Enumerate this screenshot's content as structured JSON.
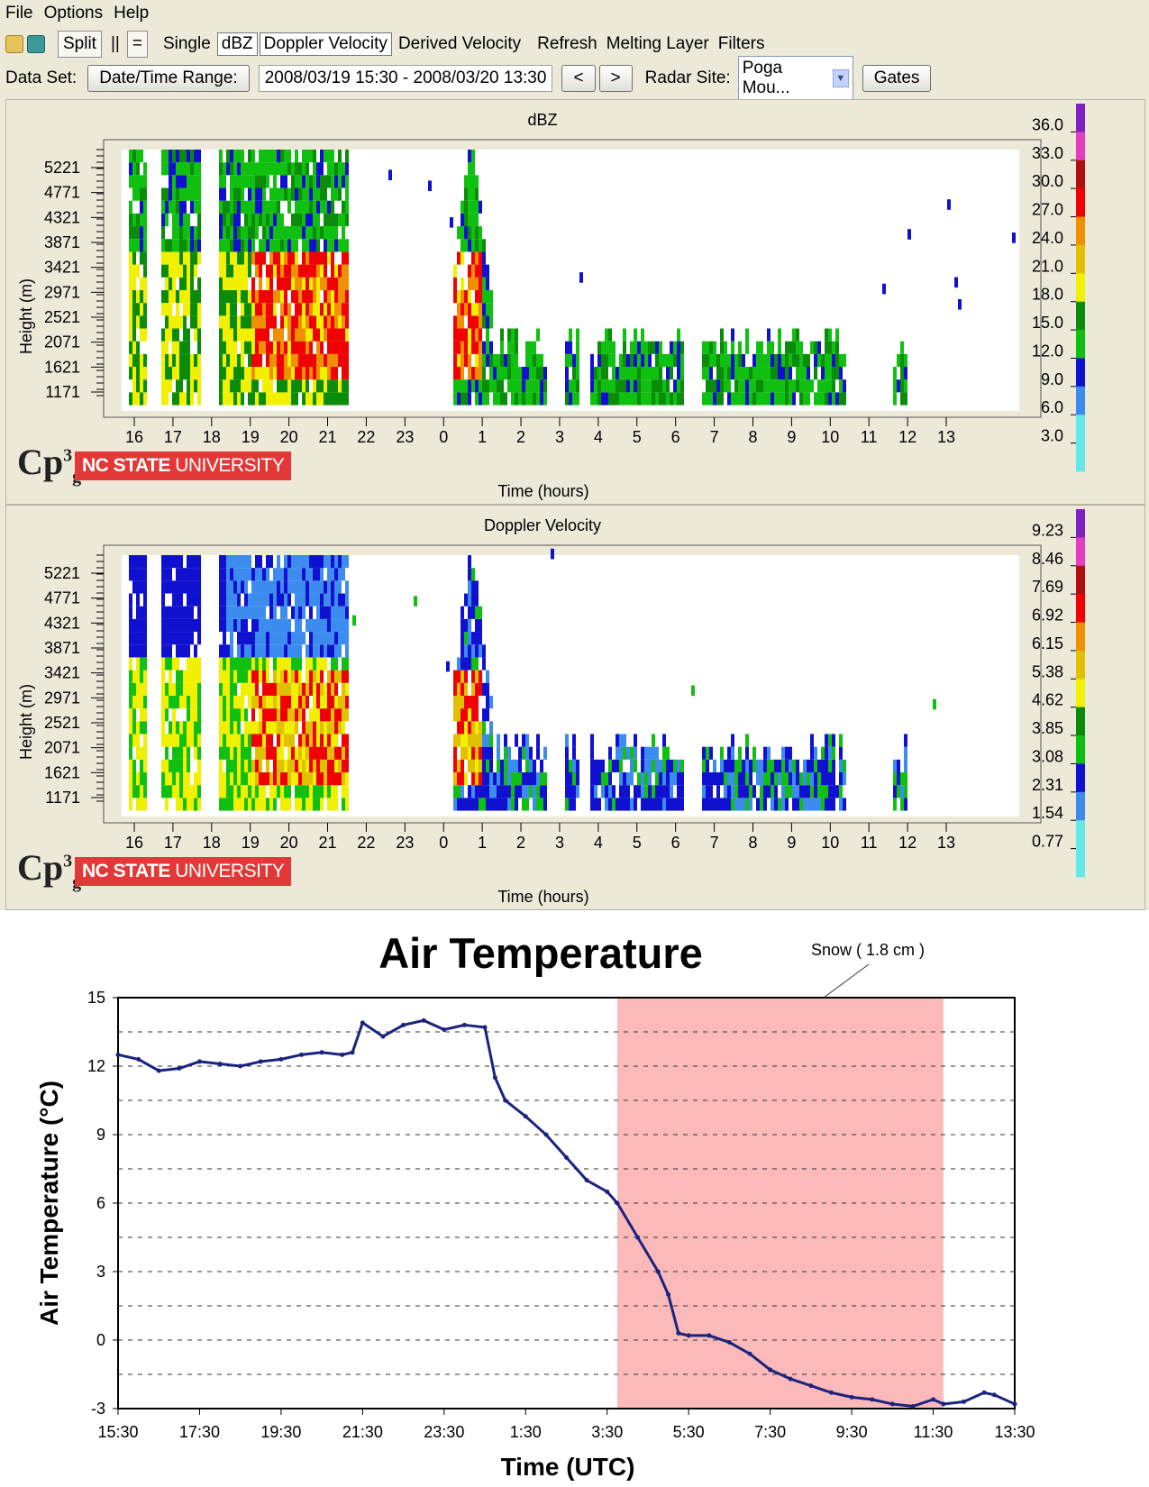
{
  "menu": {
    "items": [
      "File",
      "Options",
      "Help"
    ]
  },
  "toolbar": {
    "split_label": "Split",
    "parallel_label": "||",
    "equal_label": "=",
    "single_label": "Single",
    "dbz_label": "dBZ",
    "doppler_label": "Doppler Velocity",
    "derived_label": "Derived Velocity",
    "refresh_label": "Refresh",
    "melting_label": "Melting Layer",
    "filters_label": "Filters"
  },
  "dataset": {
    "label": "Data Set:",
    "range_button": "Date/Time Range:",
    "range_value": "2008/03/19 15:30 - 2008/03/20 13:30",
    "prev_label": "<",
    "next_label": ">",
    "site_label": "Radar Site:",
    "site_value": "Poga Mou...",
    "gates_label": "Gates"
  },
  "panels": [
    {
      "title": "dBZ",
      "ylabel": "Height (m)",
      "xlabel": "Time (hours)",
      "yticks": [
        "5221",
        "4771",
        "4321",
        "3871",
        "3421",
        "2971",
        "2521",
        "2071",
        "1621",
        "1171"
      ],
      "xticks": [
        "16",
        "17",
        "18",
        "19",
        "20",
        "21",
        "22",
        "23",
        "0",
        "1",
        "2",
        "3",
        "4",
        "5",
        "6",
        "7",
        "8",
        "9",
        "10",
        "11",
        "12",
        "13"
      ],
      "colorbar": [
        "36.0",
        "33.0",
        "30.0",
        "27.0",
        "24.0",
        "21.0",
        "18.0",
        "15.0",
        "12.0",
        "9.0",
        "6.0",
        "3.0"
      ]
    },
    {
      "title": "Doppler Velocity",
      "ylabel": "Height (m)",
      "xlabel": "Time (hours)",
      "yticks": [
        "5221",
        "4771",
        "4321",
        "3871",
        "3421",
        "2971",
        "2521",
        "2071",
        "1621",
        "1171"
      ],
      "xticks": [
        "16",
        "17",
        "18",
        "19",
        "20",
        "21",
        "22",
        "23",
        "0",
        "1",
        "2",
        "3",
        "4",
        "5",
        "6",
        "7",
        "8",
        "9",
        "10",
        "11",
        "12",
        "13"
      ],
      "colorbar": [
        "9.23",
        "8.46",
        "7.69",
        "6.92",
        "6.15",
        "5.38",
        "4.62",
        "3.85",
        "3.08",
        "2.31",
        "1.54",
        "0.77"
      ]
    }
  ],
  "logos": {
    "cp_text": "Cp",
    "cp_sup": "3",
    "cp_sub": "g",
    "ncsu_bold": "NC STATE",
    "ncsu_rest": " UNIVERSITY"
  },
  "colors": {
    "scale": [
      "#66e8e8",
      "#3c8cf0",
      "#1010d0",
      "#10c010",
      "#0a8c0a",
      "#f0f000",
      "#e0c000",
      "#f09000",
      "#f00000",
      "#b01010",
      "#e040c0",
      "#8020c0"
    ],
    "snow_band": "#fbb9b9",
    "temp_line": "#1a237e"
  },
  "chart_data": {
    "type": "line",
    "title": "Air Temperature",
    "xlabel": "Time (UTC)",
    "ylabel": "Air Temperature (°C)",
    "ylim": [
      -3,
      15
    ],
    "yticks": [
      -3,
      0,
      3,
      6,
      9,
      12,
      15
    ],
    "xlim": [
      "15:30",
      "13:30"
    ],
    "xticks": [
      "15:30",
      "17:30",
      "19:30",
      "21:30",
      "23:30",
      "1:30",
      "3:30",
      "5:30",
      "7:30",
      "9:30",
      "11:30",
      "13:30"
    ],
    "grid": "horizontal dashed",
    "annotation": {
      "text": "Snow ( 1.8 cm )",
      "x_start": "3:45",
      "x_end": "11:45"
    },
    "series": [
      {
        "x": [
          "15:30",
          "16:00",
          "16:30",
          "17:00",
          "17:30",
          "18:00",
          "18:30",
          "19:00",
          "19:30",
          "20:00",
          "20:30",
          "21:00",
          "21:15",
          "21:30",
          "22:00",
          "22:30",
          "23:00",
          "23:30",
          "0:00",
          "0:30",
          "0:45",
          "1:00",
          "1:30",
          "2:00",
          "2:30",
          "3:00",
          "3:30",
          "3:45",
          "4:15",
          "4:45",
          "5:00",
          "5:15",
          "5:30",
          "6:00",
          "6:30",
          "7:00",
          "7:30",
          "8:00",
          "8:30",
          "9:00",
          "9:30",
          "10:00",
          "10:30",
          "11:00",
          "11:30",
          "11:45",
          "12:15",
          "12:45",
          "13:00",
          "13:30"
        ],
        "y": [
          12.5,
          12.3,
          11.8,
          11.9,
          12.2,
          12.1,
          12.0,
          12.2,
          12.3,
          12.5,
          12.6,
          12.5,
          12.6,
          13.9,
          13.3,
          13.8,
          14.0,
          13.6,
          13.8,
          13.7,
          11.5,
          10.5,
          9.8,
          9.0,
          8.0,
          7.0,
          6.5,
          6.0,
          4.5,
          3.0,
          2.0,
          0.3,
          0.2,
          0.2,
          -0.1,
          -0.6,
          -1.3,
          -1.7,
          -2.0,
          -2.3,
          -2.5,
          -2.6,
          -2.8,
          -2.9,
          -2.6,
          -2.8,
          -2.7,
          -2.3,
          -2.4,
          -2.8
        ]
      }
    ]
  }
}
